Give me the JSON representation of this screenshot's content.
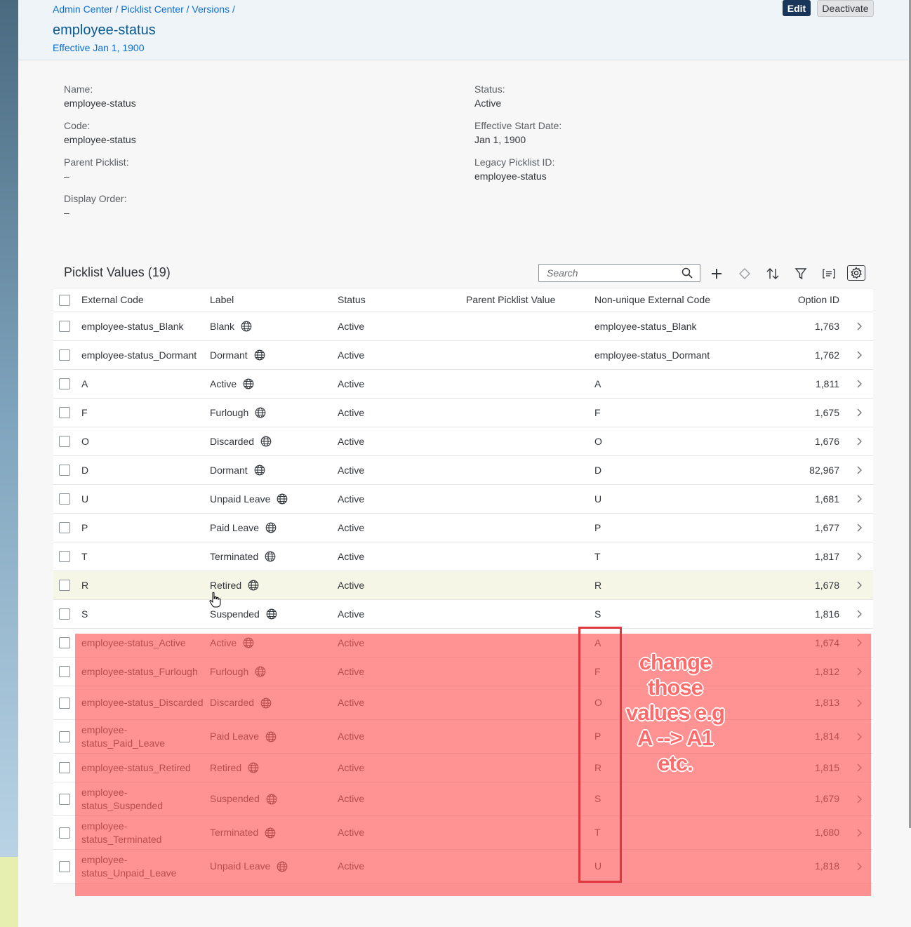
{
  "header": {
    "breadcrumb": "Admin Center / Picklist Center / Versions /",
    "title": "employee-status",
    "effective": "Effective Jan 1, 1900",
    "edit_label": "Edit",
    "deactivate_label": "Deactivate"
  },
  "details": {
    "name_label": "Name:",
    "name_value": "employee-status",
    "code_label": "Code:",
    "code_value": "employee-status",
    "parent_label": "Parent Picklist:",
    "parent_value": "–",
    "order_label": "Display Order:",
    "order_value": "–",
    "status_label": "Status:",
    "status_value": "Active",
    "start_label": "Effective Start Date:",
    "start_value": "Jan 1, 1900",
    "legacy_label": "Legacy Picklist ID:",
    "legacy_value": "employee-status"
  },
  "table": {
    "title": "Picklist Values (19)",
    "search_placeholder": "Search",
    "columns": [
      "External Code",
      "Label",
      "Status",
      "Parent Picklist Value",
      "Non-unique External Code",
      "Option ID"
    ],
    "rows": [
      [
        "employee-status_Blank",
        "Blank",
        "Active",
        "",
        "employee-status_Blank",
        "1,763"
      ],
      [
        "employee-status_Dormant",
        "Dormant",
        "Active",
        "",
        "employee-status_Dormant",
        "1,762"
      ],
      [
        "A",
        "Active",
        "Active",
        "",
        "A",
        "1,811"
      ],
      [
        "F",
        "Furlough",
        "Active",
        "",
        "F",
        "1,675"
      ],
      [
        "O",
        "Discarded",
        "Active",
        "",
        "O",
        "1,676"
      ],
      [
        "D",
        "Dormant",
        "Active",
        "",
        "D",
        "82,967"
      ],
      [
        "U",
        "Unpaid Leave",
        "Active",
        "",
        "U",
        "1,681"
      ],
      [
        "P",
        "Paid Leave",
        "Active",
        "",
        "P",
        "1,677"
      ],
      [
        "T",
        "Terminated",
        "Active",
        "",
        "T",
        "1,817"
      ],
      [
        "R",
        "Retired",
        "Active",
        "",
        "R",
        "1,678"
      ],
      [
        "S",
        "Suspended",
        "Active",
        "",
        "S",
        "1,816"
      ],
      [
        "employee-status_Active",
        "Active",
        "Active",
        "",
        "A",
        "1,674"
      ],
      [
        "employee-status_Furlough",
        "Furlough",
        "Active",
        "",
        "F",
        "1,812"
      ],
      [
        "employee-status_Discarded",
        "Discarded",
        "Active",
        "",
        "O",
        "1,813"
      ],
      [
        "employee-status_Paid_Leave",
        "Paid Leave",
        "Active",
        "",
        "P",
        "1,814"
      ],
      [
        "employee-status_Retired",
        "Retired",
        "Active",
        "",
        "R",
        "1,815"
      ],
      [
        "employee-status_Suspended",
        "Suspended",
        "Active",
        "",
        "S",
        "1,679"
      ],
      [
        "employee-status_Terminated",
        "Terminated",
        "Active",
        "",
        "T",
        "1,680"
      ],
      [
        "employee-status_Unpaid_Leave",
        "Unpaid Leave",
        "Active",
        "",
        "U",
        "1,818"
      ]
    ]
  },
  "annotation": {
    "lines": [
      "change",
      "those",
      "values e.g",
      "A --> A1",
      "etc."
    ]
  }
}
